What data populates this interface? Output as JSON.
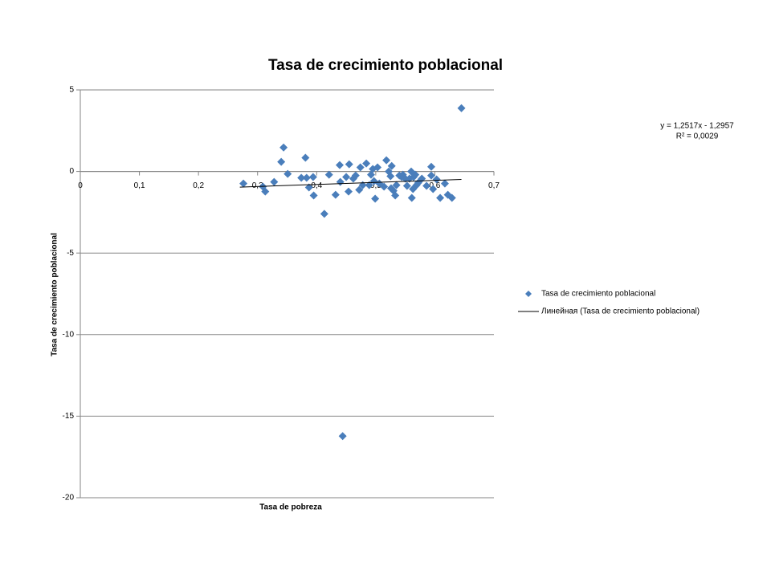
{
  "chart_data": {
    "type": "scatter",
    "title": "Tasa de crecimiento poblacional",
    "x_label": "Tasa de pobreza",
    "y_label": "Tasa de crecimiento poblacional",
    "xlim": [
      0,
      0.7
    ],
    "xticks": [
      0,
      {
        "value": 0.1,
        "label": "0,1"
      },
      {
        "value": 0.2,
        "label": "0,2"
      },
      {
        "value": 0.3,
        "label": "0,3"
      },
      {
        "value": 0.4,
        "label": "0,4"
      },
      {
        "value": 0.5,
        "label": "0,5"
      },
      {
        "value": 0.6,
        "label": "0,6"
      },
      {
        "value": 0.7,
        "label": "0,7"
      }
    ],
    "ylim": [
      -20,
      5
    ],
    "yticks": [
      5,
      0,
      -5,
      -10,
      -15,
      -20
    ],
    "grid": true,
    "series": [
      {
        "name": "Tasa de crecimiento poblacional",
        "color": "#4a7ebb",
        "x": [
          0.276,
          0.309,
          0.313,
          0.328,
          0.34,
          0.344,
          0.351,
          0.374,
          0.381,
          0.383,
          0.387,
          0.394,
          0.395,
          0.413,
          0.421,
          0.432,
          0.439,
          0.44,
          0.444,
          0.45,
          0.454,
          0.455,
          0.462,
          0.466,
          0.472,
          0.474,
          0.478,
          0.484,
          0.489,
          0.492,
          0.495,
          0.497,
          0.499,
          0.503,
          0.506,
          0.514,
          0.518,
          0.522,
          0.525,
          0.526,
          0.527,
          0.53,
          0.533,
          0.535,
          0.54,
          0.544,
          0.546,
          0.55,
          0.553,
          0.557,
          0.56,
          0.561,
          0.563,
          0.564,
          0.567,
          0.569,
          0.572,
          0.578,
          0.586,
          0.594,
          0.594,
          0.597,
          0.603,
          0.609,
          0.617,
          0.622,
          0.629,
          0.645
        ],
        "values": [
          -0.74,
          -0.93,
          -1.23,
          -0.64,
          0.59,
          1.47,
          -0.15,
          -0.39,
          0.84,
          -0.39,
          -0.98,
          -0.34,
          -1.47,
          -2.6,
          -0.2,
          -1.43,
          0.39,
          -0.64,
          -16.22,
          -0.34,
          -1.23,
          0.44,
          -0.44,
          -0.25,
          -1.13,
          0.25,
          -0.84,
          0.49,
          -0.84,
          -0.2,
          0.15,
          -0.59,
          -1.67,
          0.25,
          -0.74,
          -0.93,
          0.69,
          0,
          -0.29,
          -1.03,
          0.34,
          -1.18,
          -1.47,
          -0.84,
          -0.25,
          -0.34,
          -0.2,
          -0.44,
          -0.88,
          -0.44,
          0,
          -1.62,
          -1.08,
          -0.34,
          -0.2,
          -0.84,
          -0.69,
          -0.44,
          -0.88,
          0.29,
          -0.25,
          -1.08,
          -0.49,
          -1.62,
          -0.74,
          -1.43,
          -1.62,
          3.88
        ]
      }
    ],
    "trendline": {
      "name": "Линейная (Tasa de crecimiento poblacional)",
      "color": "#000000",
      "x": [
        0.27,
        0.645
      ],
      "values": [
        -0.958,
        -0.488
      ]
    },
    "annotations": [
      "y = 1,2517x - 1,2957",
      "R² = 0,0029"
    ]
  }
}
